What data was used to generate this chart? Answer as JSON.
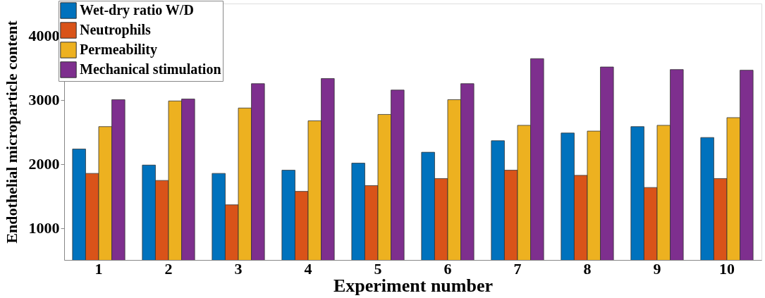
{
  "chart_data": {
    "type": "bar",
    "xlabel": "Experiment number",
    "ylabel": "Endothelial microparticle content",
    "categories": [
      "1",
      "2",
      "3",
      "4",
      "5",
      "6",
      "7",
      "8",
      "9",
      "10"
    ],
    "series": [
      {
        "name": "Wet-dry ratio W/D",
        "color": "#0072bd",
        "values": [
          2230,
          1980,
          1850,
          1900,
          2010,
          2180,
          2360,
          2480,
          2580,
          2410
        ]
      },
      {
        "name": "Neutrophils",
        "color": "#d95319",
        "values": [
          1850,
          1740,
          1360,
          1570,
          1660,
          1770,
          1900,
          1820,
          1630,
          1770
        ]
      },
      {
        "name": "Permeability",
        "color": "#edb120",
        "values": [
          2580,
          2980,
          2870,
          2670,
          2770,
          3000,
          2600,
          2510,
          2600,
          2720
        ]
      },
      {
        "name": "Mechanical stimulation",
        "color": "#7e2f8e",
        "values": [
          3000,
          3010,
          3250,
          3330,
          3150,
          3250,
          3640,
          3510,
          3470,
          3460
        ]
      }
    ],
    "ylim": [
      500,
      4500
    ],
    "yticks": [
      1000,
      2000,
      3000,
      4000
    ],
    "grid": false,
    "legend": "top left"
  }
}
